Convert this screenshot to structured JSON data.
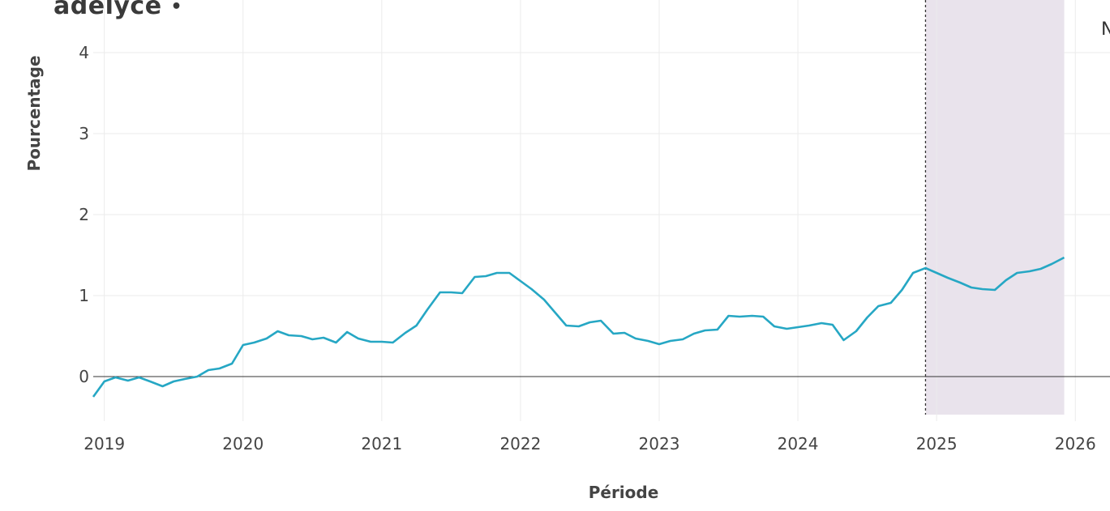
{
  "brand": {
    "name": "adelyce",
    "dot": "•"
  },
  "edge_note": "N",
  "colors": {
    "line": "#26a7c4",
    "forecast_band": "#e9e3ec",
    "zero_line": "#333333",
    "grid": "#ebebeb",
    "divider": "#333333"
  },
  "chart_data": {
    "type": "line",
    "title": "",
    "xlabel": "Période",
    "ylabel": "Pourcentage",
    "xlim": [
      2018.92,
      2026.25
    ],
    "ylim": [
      -0.55,
      4.45
    ],
    "grid": true,
    "x_ticks": [
      2019,
      2020,
      2021,
      2022,
      2023,
      2024,
      2025,
      2026
    ],
    "x_tick_labels": [
      "2019",
      "2020",
      "2021",
      "2022",
      "2023",
      "2024",
      "2025",
      "2026"
    ],
    "y_ticks": [
      0,
      1,
      2,
      3,
      4
    ],
    "y_tick_labels": [
      "0",
      "1",
      "2",
      "3",
      "4"
    ],
    "forecast_band": {
      "start": 2024.92,
      "end": 2025.92
    },
    "forecast_start_marker": 2024.92,
    "series": [
      {
        "x": [
          2018.92,
          2019.0,
          2019.08,
          2019.17,
          2019.25,
          2019.33,
          2019.42,
          2019.5,
          2019.58,
          2019.67,
          2019.75,
          2019.83,
          2019.92,
          2020.0,
          2020.08,
          2020.17,
          2020.25,
          2020.33,
          2020.42,
          2020.5,
          2020.58,
          2020.67,
          2020.75,
          2020.83,
          2020.92,
          2021.0,
          2021.08,
          2021.17,
          2021.25,
          2021.33,
          2021.42,
          2021.5,
          2021.58,
          2021.67,
          2021.75,
          2021.83,
          2021.92,
          2022.0,
          2022.08,
          2022.17,
          2022.25,
          2022.33,
          2022.42,
          2022.5,
          2022.58,
          2022.67,
          2022.75,
          2022.83,
          2022.92,
          2023.0,
          2023.08,
          2023.17,
          2023.25,
          2023.33,
          2023.42,
          2023.5,
          2023.58,
          2023.67,
          2023.75,
          2023.83,
          2023.92,
          2024.0,
          2024.08,
          2024.17,
          2024.25,
          2024.33,
          2024.42,
          2024.5,
          2024.58,
          2024.67,
          2024.75,
          2024.83,
          2024.92,
          2025.0,
          2025.08,
          2025.17,
          2025.25,
          2025.33,
          2025.42,
          2025.5,
          2025.58,
          2025.67,
          2025.75,
          2025.83,
          2025.92
        ],
        "values": [
          -0.25,
          -0.06,
          -0.01,
          -0.05,
          -0.01,
          -0.06,
          -0.12,
          -0.06,
          -0.03,
          0.0,
          0.08,
          0.1,
          0.16,
          0.39,
          0.42,
          0.47,
          0.56,
          0.51,
          0.5,
          0.46,
          0.48,
          0.42,
          0.55,
          0.47,
          0.43,
          0.43,
          0.42,
          0.54,
          0.63,
          0.83,
          1.04,
          1.04,
          1.03,
          1.23,
          1.24,
          1.28,
          1.28,
          1.18,
          1.08,
          0.95,
          0.79,
          0.63,
          0.62,
          0.67,
          0.69,
          0.53,
          0.54,
          0.47,
          0.44,
          0.4,
          0.44,
          0.46,
          0.53,
          0.57,
          0.58,
          0.75,
          0.74,
          0.75,
          0.74,
          0.62,
          0.59,
          0.61,
          0.63,
          0.66,
          0.64,
          0.45,
          0.56,
          0.73,
          0.87,
          0.91,
          1.07,
          1.28,
          1.34,
          1.28,
          1.22,
          1.16,
          1.1,
          1.08,
          1.07,
          1.19,
          1.28,
          1.3,
          1.33,
          1.39,
          1.47
        ]
      }
    ]
  }
}
